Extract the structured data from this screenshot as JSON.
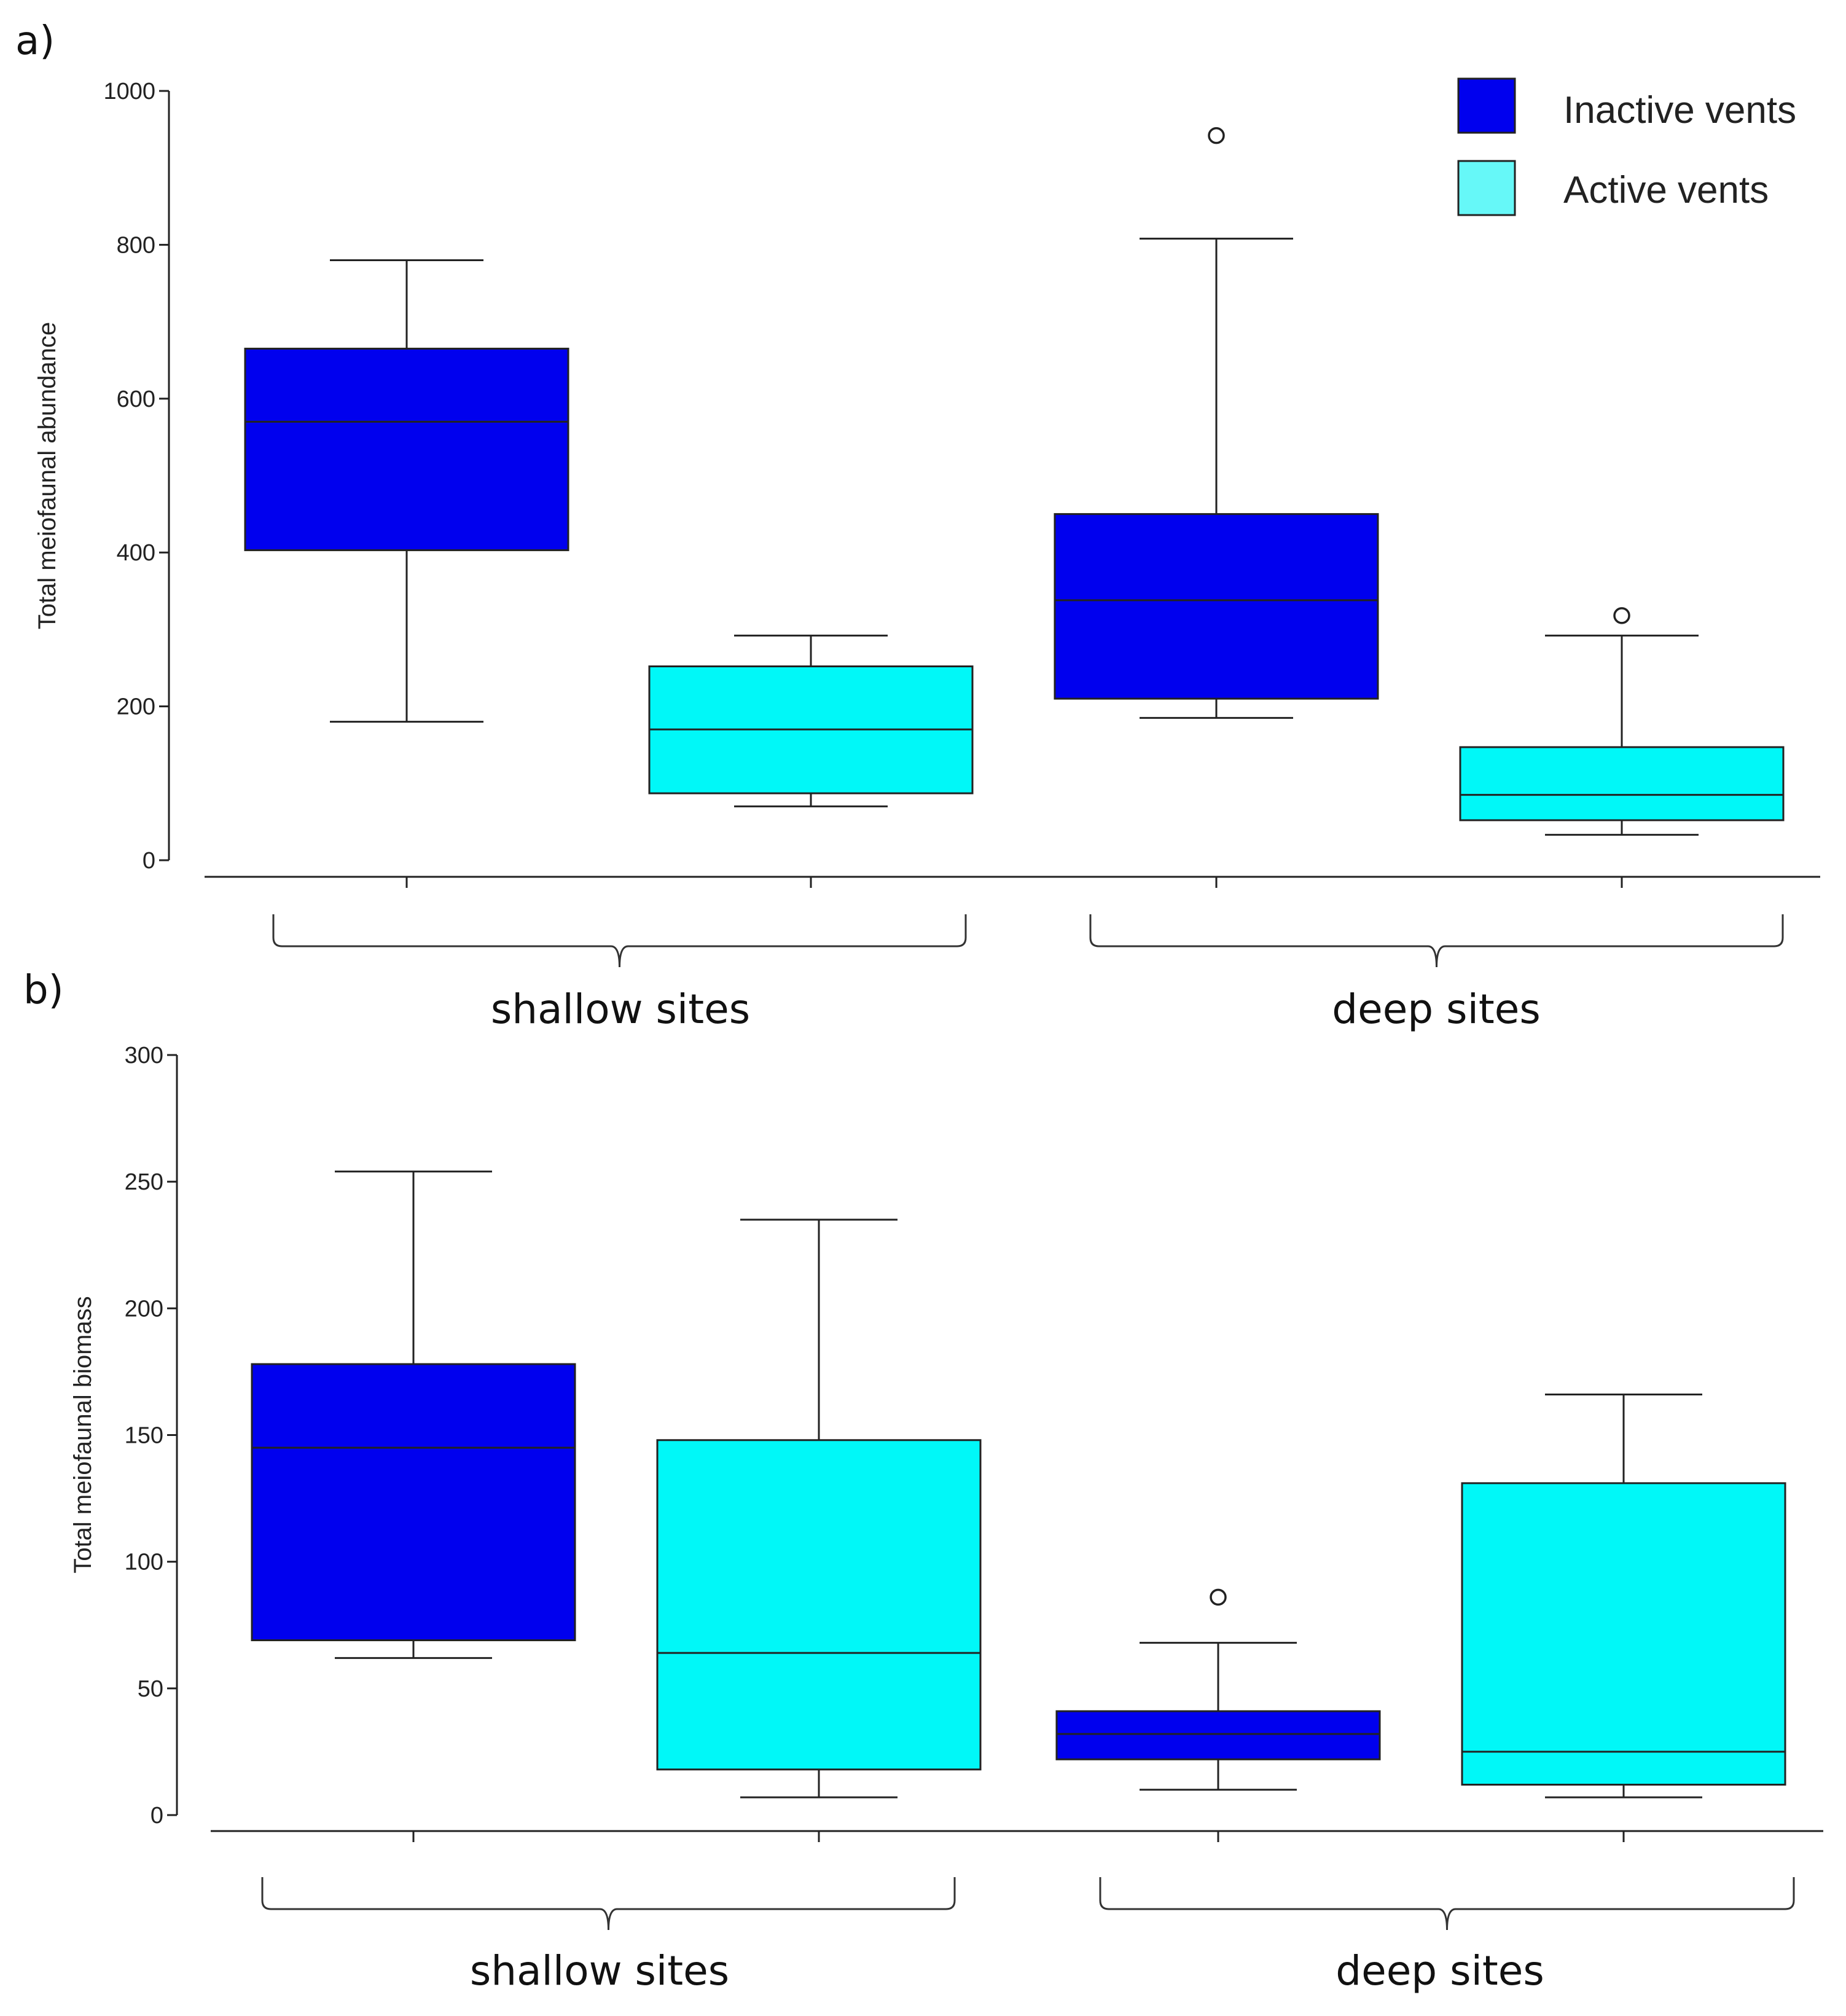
{
  "colors": {
    "inactive": "#0000ee",
    "active": "#00f8f8",
    "active_legend": "#66f8f8"
  },
  "legend": {
    "items": [
      {
        "label": "Inactive vents",
        "color": "#0000ee"
      },
      {
        "label": "Active vents",
        "color": "#66f8f8"
      }
    ]
  },
  "chart_data": [
    {
      "type": "box",
      "panel_label": "a)",
      "ylabel": "Total meiofaunal abundance",
      "ylim": [
        0,
        1000
      ],
      "yticks": [
        0,
        200,
        400,
        600,
        800,
        1000
      ],
      "groups": [
        {
          "label": "shallow sites"
        },
        {
          "label": "deep sites"
        }
      ],
      "boxes": [
        {
          "group": "shallow sites",
          "series": "Inactive vents",
          "min": 180,
          "q1": 403,
          "median": 570,
          "q3": 665,
          "max": 780,
          "outliers": []
        },
        {
          "group": "shallow sites",
          "series": "Active vents",
          "min": 70,
          "q1": 87,
          "median": 170,
          "q3": 252,
          "max": 292,
          "outliers": []
        },
        {
          "group": "deep sites",
          "series": "Inactive vents",
          "min": 185,
          "q1": 210,
          "median": 338,
          "q3": 450,
          "max": 808,
          "outliers": [
            942
          ]
        },
        {
          "group": "deep sites",
          "series": "Active vents",
          "min": 33,
          "q1": 52,
          "median": 85,
          "q3": 147,
          "max": 292,
          "outliers": [
            318
          ]
        }
      ]
    },
    {
      "type": "box",
      "panel_label": "b)",
      "ylabel": "Total meiofaunal biomass",
      "ylim": [
        0,
        300
      ],
      "yticks": [
        0,
        50,
        100,
        150,
        200,
        250,
        300
      ],
      "groups": [
        {
          "label": "shallow sites"
        },
        {
          "label": "deep sites"
        }
      ],
      "boxes": [
        {
          "group": "shallow sites",
          "series": "Inactive vents",
          "min": 62,
          "q1": 69,
          "median": 145,
          "q3": 178,
          "max": 254,
          "outliers": []
        },
        {
          "group": "shallow sites",
          "series": "Active vents",
          "min": 7,
          "q1": 18,
          "median": 64,
          "q3": 148,
          "max": 235,
          "outliers": []
        },
        {
          "group": "deep sites",
          "series": "Inactive vents",
          "min": 10,
          "q1": 22,
          "median": 32,
          "q3": 41,
          "max": 68,
          "outliers": [
            86
          ]
        },
        {
          "group": "deep sites",
          "series": "Active vents",
          "min": 7,
          "q1": 12,
          "median": 25,
          "q3": 131,
          "max": 166,
          "outliers": []
        }
      ]
    }
  ]
}
